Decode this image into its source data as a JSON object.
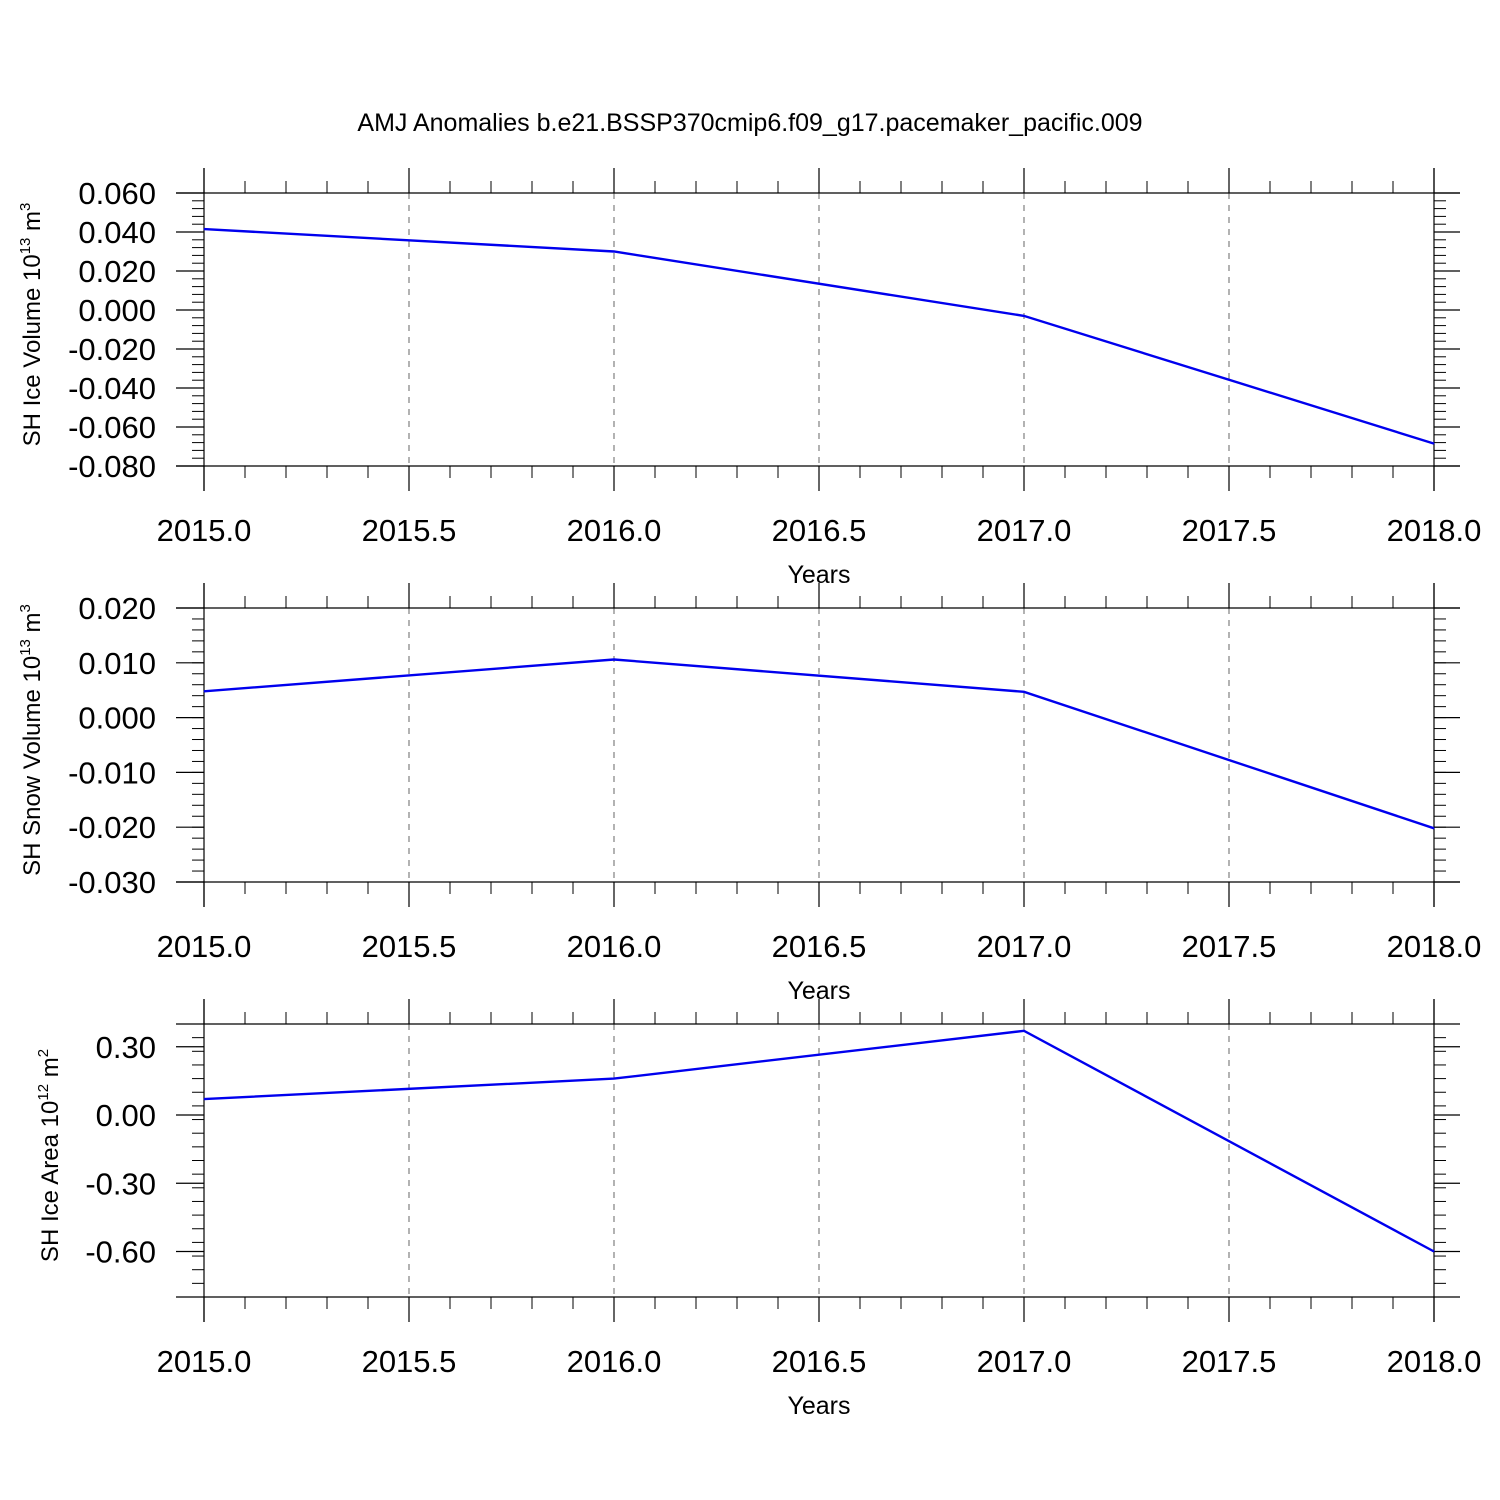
{
  "title": "AMJ Anomalies b.e21.BSSP370cmip6.f09_g17.pacemaker_pacific.009",
  "colors": {
    "series": "#0000ee",
    "axis": "#000000",
    "grid": "#808080"
  },
  "chart_data": [
    {
      "type": "line",
      "title": "",
      "xlabel": "Years",
      "ylabel": {
        "text": "SH Ice Volume 10",
        "exponent": "13",
        "unit": " m",
        "unit_exponent": "3"
      },
      "xlim": [
        2015.0,
        2018.0
      ],
      "ylim": [
        -0.08,
        0.06
      ],
      "x_ticks": [
        "2015.0",
        "2015.5",
        "2016.0",
        "2016.5",
        "2017.0",
        "2017.5",
        "2018.0"
      ],
      "y_ticks": [
        "0.060",
        "0.040",
        "0.020",
        "0.000",
        "-0.020",
        "-0.040",
        "-0.060",
        "-0.080"
      ],
      "grid": "x-dashed",
      "x": [
        2015,
        2016,
        2017,
        2018
      ],
      "y": [
        0.0415,
        0.03,
        -0.003,
        -0.0685
      ]
    },
    {
      "type": "line",
      "title": "",
      "xlabel": "Years",
      "ylabel": {
        "text": "SH Snow Volume 10",
        "exponent": "13",
        "unit": " m",
        "unit_exponent": "3"
      },
      "xlim": [
        2015.0,
        2018.0
      ],
      "ylim": [
        -0.03,
        0.02
      ],
      "x_ticks": [
        "2015.0",
        "2015.5",
        "2016.0",
        "2016.5",
        "2017.0",
        "2017.5",
        "2018.0"
      ],
      "y_ticks": [
        "0.020",
        "0.010",
        "0.000",
        "-0.010",
        "-0.020",
        "-0.030"
      ],
      "grid": "x-dashed",
      "x": [
        2015,
        2016,
        2017,
        2018
      ],
      "y": [
        0.0048,
        0.0106,
        0.0047,
        -0.0202
      ]
    },
    {
      "type": "line",
      "title": "",
      "xlabel": "Years",
      "ylabel": {
        "text": "SH Ice Area 10",
        "exponent": "12",
        "unit": " m",
        "unit_exponent": "2"
      },
      "xlim": [
        2015.0,
        2018.0
      ],
      "ylim": [
        -0.8,
        0.4
      ],
      "x_ticks": [
        "2015.0",
        "2015.5",
        "2016.0",
        "2016.5",
        "2017.0",
        "2017.5",
        "2018.0"
      ],
      "y_ticks": [
        "0.30",
        "0.00",
        "-0.30",
        "-0.60"
      ],
      "grid": "x-dashed",
      "x": [
        2015,
        2016,
        2017,
        2018
      ],
      "y": [
        0.07,
        0.16,
        0.37,
        -0.6
      ]
    }
  ]
}
